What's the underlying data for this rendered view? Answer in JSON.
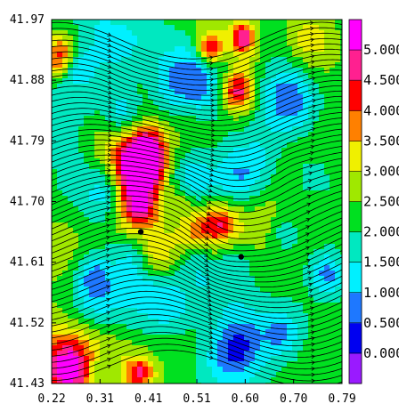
{
  "chart_data": {
    "type": "heatmap",
    "title": "",
    "xlabel": "",
    "ylabel": "",
    "xlim": [
      0.22,
      0.79
    ],
    "ylim": [
      41.43,
      41.97
    ],
    "x_ticks": [
      "0.22",
      "0.31",
      "0.41",
      "0.51",
      "0.60",
      "0.70",
      "0.79"
    ],
    "y_ticks": [
      "41.97",
      "41.88",
      "41.79",
      "41.70",
      "41.61",
      "41.52",
      "41.43"
    ],
    "overlay": "streamlines with arrowheads",
    "colorbar": {
      "labels": [
        "0.000",
        "0.500",
        "1.000",
        "1.500",
        "2.000",
        "2.500",
        "3.000",
        "3.500",
        "4.000",
        "4.500",
        "5.000"
      ],
      "colors": [
        "#9a1aff",
        "#0000f0",
        "#1e78ff",
        "#00f0ff",
        "#00e8c0",
        "#00e020",
        "#a0e800",
        "#f0f000",
        "#ff8000",
        "#ff0000",
        "#ff2090",
        "#ff00ff"
      ]
    },
    "markers": [
      {
        "x": 0.395,
        "y": 41.655
      },
      {
        "x": 0.592,
        "y": 41.618
      }
    ],
    "grid": false,
    "legend": "none"
  }
}
